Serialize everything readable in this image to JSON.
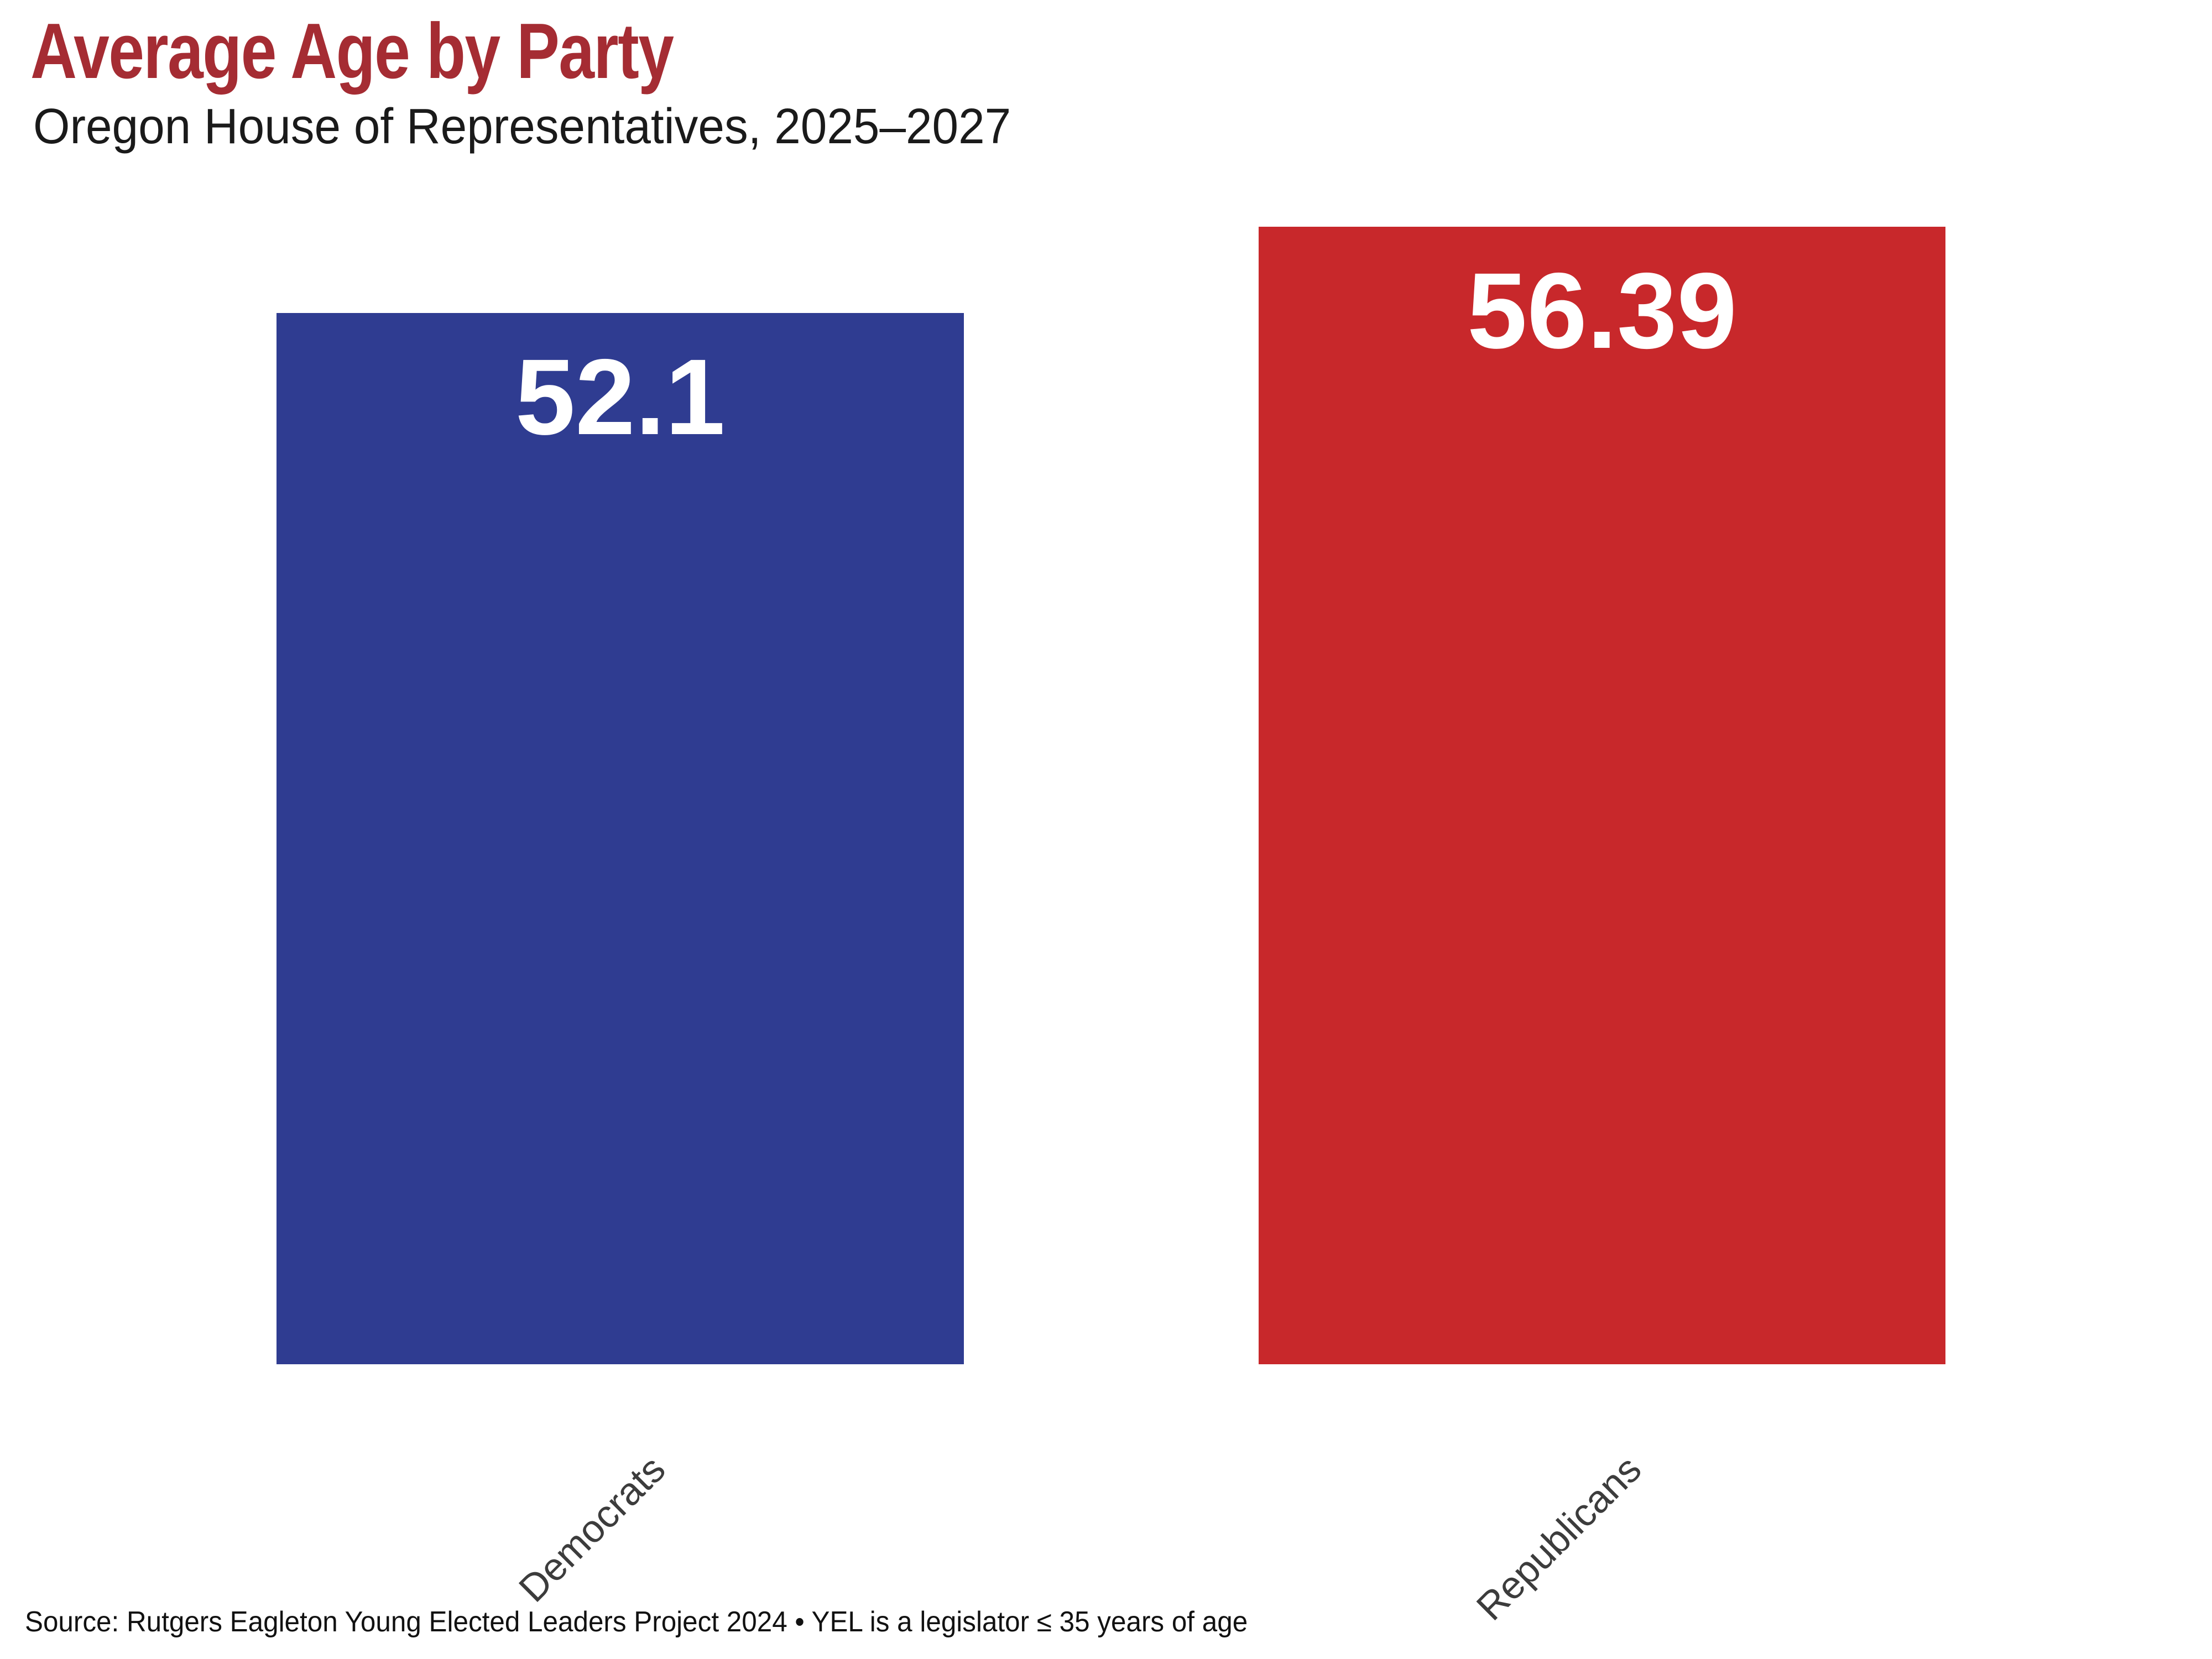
{
  "chart_data": {
    "type": "bar",
    "title": "Average Age by Party",
    "subtitle": "Oregon House of Representatives, 2025–2027",
    "categories": [
      "Democrats",
      "Republicans"
    ],
    "values": [
      52.1,
      56.39
    ],
    "value_labels": [
      "52.1",
      "56.39"
    ],
    "bar_colors": [
      "#2F3C91",
      "#C8282B"
    ],
    "ylim": [
      0,
      57
    ],
    "baseline": 0,
    "grid": false,
    "axes_visible": false,
    "legend": "none",
    "xlabel": "",
    "ylabel": "",
    "value_label_position": "inside-top",
    "tick_label_rotation_deg": 45,
    "source_note": "Source: Rutgers Eagleton Young Elected Leaders Project 2024 • YEL is a legislator ≤ 35 years of age"
  },
  "colors": {
    "title": "#A52C33",
    "subtitle": "#1A1A1A",
    "tick_label": "#3C3C3C",
    "value_label": "#FFFFFF",
    "source": "#111111",
    "background": "#FFFFFF"
  }
}
